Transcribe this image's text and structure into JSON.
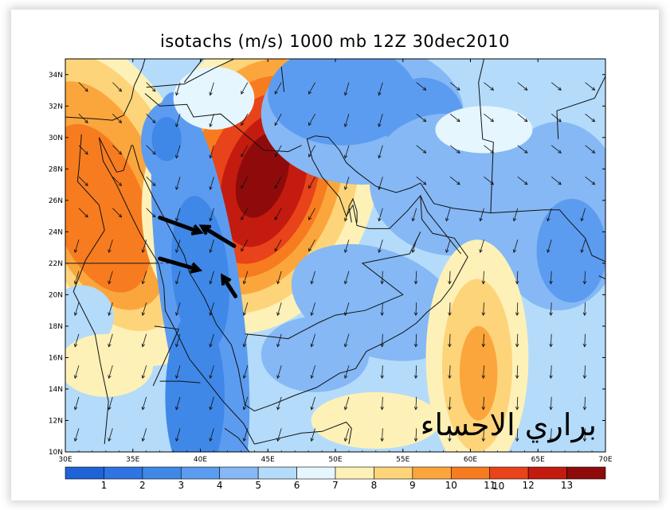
{
  "title": "isotachs (m/s) 1000 mb 12Z 30dec2010",
  "brand_text": "براري الاحساء",
  "page_note": "10",
  "map": {
    "lat_labels": [
      "34N",
      "32N",
      "30N",
      "28N",
      "26N",
      "24N",
      "22N",
      "20N",
      "18N",
      "16N",
      "14N",
      "12N",
      "10N"
    ],
    "lon_labels": [
      "30E",
      "35E",
      "40E",
      "45E",
      "50E",
      "55E",
      "60E",
      "65E",
      "70E"
    ],
    "lon_range": [
      30,
      70
    ],
    "lat_range": [
      10,
      35
    ]
  },
  "colorbar": {
    "labels": [
      "1",
      "2",
      "3",
      "4",
      "5",
      "6",
      "7",
      "8",
      "9",
      "10",
      "11",
      "12",
      "13"
    ],
    "colors": [
      "#1e64d6",
      "#2f74e2",
      "#3f88e8",
      "#5c9cf0",
      "#85b8f5",
      "#b4dbfa",
      "#e6f6ff",
      "#fdf1b8",
      "#fdd47a",
      "#fba63c",
      "#f77c1f",
      "#e8431a",
      "#c41b10",
      "#8f0b0b"
    ]
  },
  "annotations": {
    "arrows": [
      {
        "from_lon": 37.0,
        "from_lat": 24.9,
        "to_lon": 39.9,
        "to_lat": 24.0
      },
      {
        "from_lon": 42.5,
        "from_lat": 23.1,
        "to_lon": 40.2,
        "to_lat": 24.3
      },
      {
        "from_lon": 37.0,
        "from_lat": 22.3,
        "to_lon": 39.8,
        "to_lat": 21.6
      },
      {
        "from_lon": 42.6,
        "from_lat": 19.9,
        "to_lon": 41.7,
        "to_lat": 21.1
      }
    ]
  }
}
